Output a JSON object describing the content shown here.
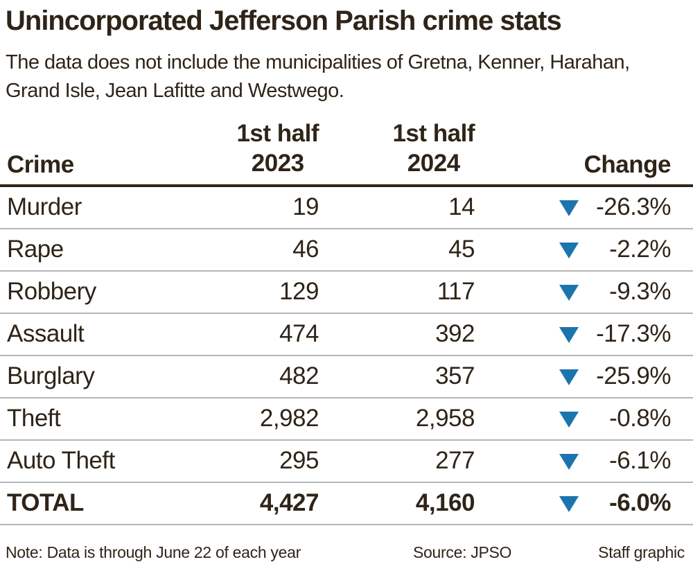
{
  "colors": {
    "ink": "#2f2418",
    "accent_blue": "#1b74ad",
    "separator": "#b5b5b5",
    "paper": "#ffffff"
  },
  "header": {
    "title": "Unincorporated Jefferson Parish crime stats",
    "subtitle": "The data does not include the municipalities of Gretna, Kenner, Harahan, Grand Isle, Jean Lafitte and Westwego."
  },
  "table": {
    "columns": {
      "crime": "Crime",
      "col2023_line1": "1st half",
      "col2023_line2": "2023",
      "col2024_line1": "1st half",
      "col2024_line2": "2024",
      "change": "Change"
    },
    "rows": [
      {
        "crime": "Murder",
        "h2023": "19",
        "h2024": "14",
        "change": "-26.3%",
        "direction": "down"
      },
      {
        "crime": "Rape",
        "h2023": "46",
        "h2024": "45",
        "change": "-2.2%",
        "direction": "down"
      },
      {
        "crime": "Robbery",
        "h2023": "129",
        "h2024": "117",
        "change": "-9.3%",
        "direction": "down"
      },
      {
        "crime": "Assault",
        "h2023": "474",
        "h2024": "392",
        "change": "-17.3%",
        "direction": "down"
      },
      {
        "crime": "Burglary",
        "h2023": "482",
        "h2024": "357",
        "change": "-25.9%",
        "direction": "down"
      },
      {
        "crime": "Theft",
        "h2023": "2,982",
        "h2024": "2,958",
        "change": "-0.8%",
        "direction": "down"
      },
      {
        "crime": "Auto Theft",
        "h2023": "295",
        "h2024": "277",
        "change": "-6.1%",
        "direction": "down"
      },
      {
        "crime": "TOTAL",
        "h2023": "4,427",
        "h2024": "4,160",
        "change": "-6.0%",
        "direction": "down"
      }
    ]
  },
  "footer": {
    "note": "Note: Data is through June 22 of each year",
    "source": "Source: JPSO",
    "credit": "Staff graphic"
  },
  "chart_data": {
    "type": "table",
    "title": "Unincorporated Jefferson Parish crime stats",
    "subtitle": "The data does not include the municipalities of Gretna, Kenner, Harahan, Grand Isle, Jean Lafitte and Westwego.",
    "columns": [
      "Crime",
      "1st half 2023",
      "1st half 2024",
      "Change"
    ],
    "rows": [
      [
        "Murder",
        19,
        14,
        -26.3
      ],
      [
        "Rape",
        46,
        45,
        -2.2
      ],
      [
        "Robbery",
        129,
        117,
        -9.3
      ],
      [
        "Assault",
        474,
        392,
        -17.3
      ],
      [
        "Burglary",
        482,
        357,
        -25.9
      ],
      [
        "Theft",
        2982,
        2958,
        -0.8
      ],
      [
        "Auto Theft",
        295,
        277,
        -6.1
      ],
      [
        "TOTAL",
        4427,
        4160,
        -6.0
      ]
    ],
    "change_unit": "percent",
    "all_changes_negative": true,
    "indicator": "blue down triangle per row",
    "note": "Note: Data is through June 22 of each year",
    "source": "Source: JPSO",
    "credit": "Staff graphic"
  }
}
